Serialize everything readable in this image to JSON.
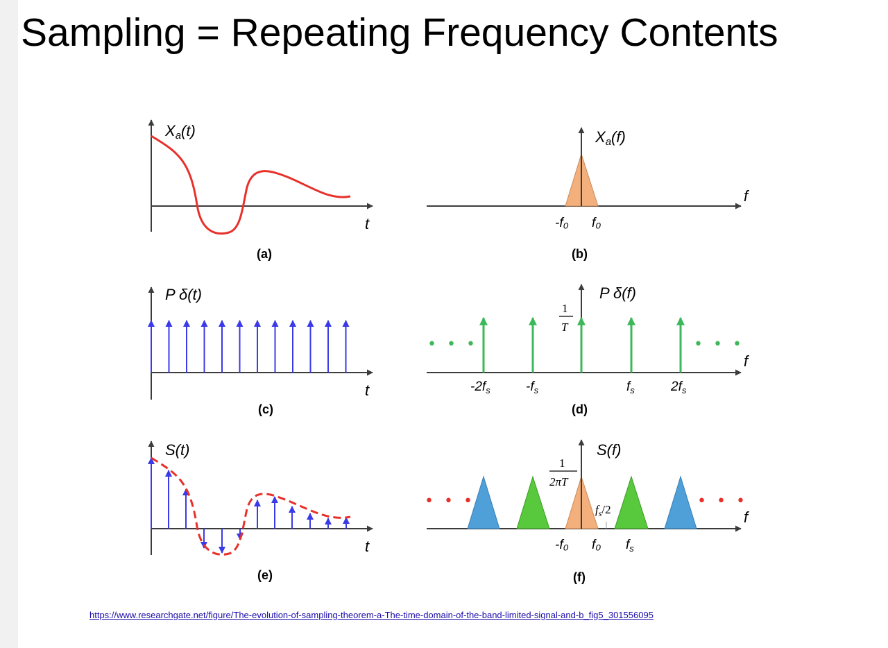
{
  "slide": {
    "title": "Sampling = Repeating Frequency Contents",
    "source_url": "https://www.researchgate.net/figure/The-evolution-of-sampling-theorem-a-The-time-domain-of-the-band-limited-signal-and-b_fig5_301556095"
  },
  "colors": {
    "signal_red": "#e8302a",
    "impulse_blue": "#3a3ae8",
    "comb_green": "#3cb85a",
    "band_orange": "#f3b07c",
    "replica_green": "#58c83c",
    "replica_blue": "#4f9fd8",
    "axis": "#3c3c3c"
  },
  "panels": {
    "a": {
      "caption": "(a)",
      "ylabel": "X",
      "ysub": "a",
      "yarg": "(t)",
      "xlabel": "t"
    },
    "b": {
      "caption": "(b)",
      "ylabel": "X",
      "ysub": "a",
      "yarg": "(f)",
      "xlabel": "f",
      "ticks": [
        "-f₀",
        "f₀"
      ]
    },
    "c": {
      "caption": "(c)",
      "ylabel": "P δ(t)",
      "xlabel": "t",
      "impulse_count": 12
    },
    "d": {
      "caption": "(d)",
      "ylabel": "P δ(f)",
      "xlabel": "f",
      "height_num": "1",
      "height_den": "T",
      "dots": "• • •",
      "ticks": [
        "-2f",
        "-f",
        "f",
        "2f"
      ],
      "tick_sub": "s"
    },
    "e": {
      "caption": "(e)",
      "ylabel": "S(t)",
      "xlabel": "t"
    },
    "f": {
      "caption": "(f)",
      "ylabel": "S(f)",
      "xlabel": "f",
      "height_num": "1",
      "height_den": "2πT",
      "dots": "• • •",
      "half_label": "f",
      "half_sub": "s",
      "half_suffix": "/2",
      "ticks": [
        "-f₀",
        "f₀",
        "f"
      ],
      "tick_sub": "s"
    }
  }
}
